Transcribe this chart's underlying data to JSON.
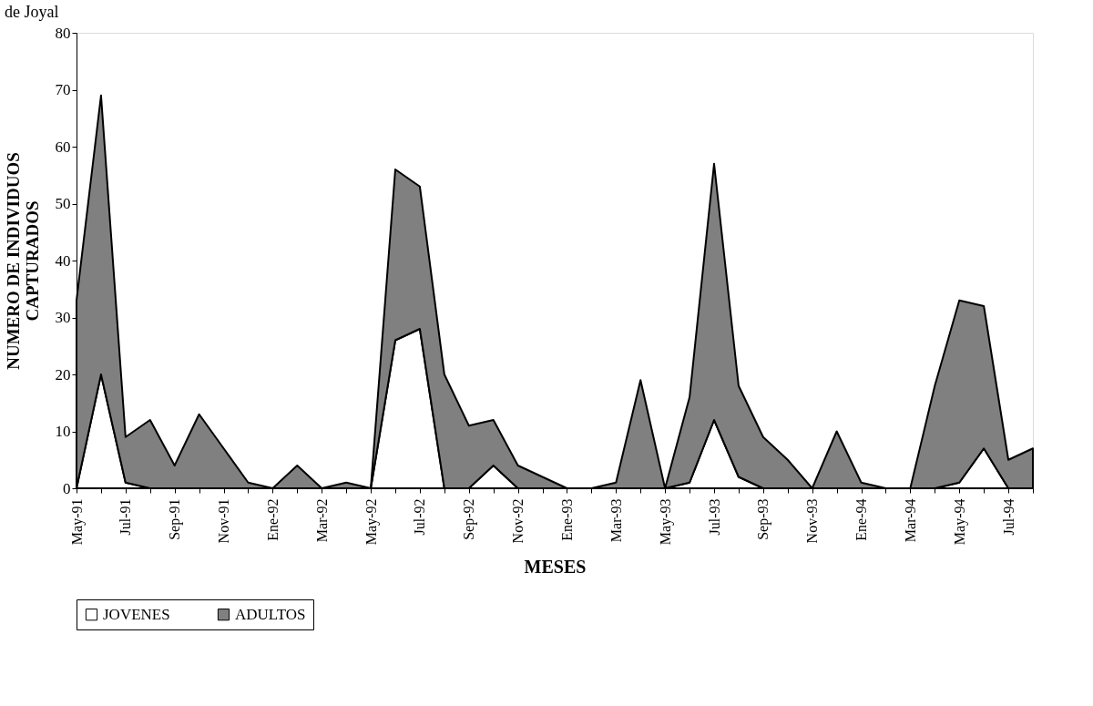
{
  "chart_data": {
    "type": "area",
    "title": "de Joyal",
    "xlabel": "MESES",
    "ylabel": "NUMERO DE INDIVIDUOS\nCAPTURADOS",
    "categories": [
      "May-91",
      null,
      "Jul-91",
      null,
      "Sep-91",
      null,
      "Nov-91",
      null,
      "Ene-92",
      null,
      "Mar-92",
      null,
      "May-92",
      null,
      "Jul-92",
      null,
      "Sep-92",
      null,
      "Nov-92",
      null,
      "Ene-93",
      null,
      "Mar-93",
      null,
      "May-93",
      null,
      "Jul-93",
      null,
      "Sep-93",
      null,
      "Nov-93",
      null,
      "Ene-94",
      null,
      "Mar-94",
      null,
      "May-94",
      null,
      "Jul-94",
      null
    ],
    "stacked": true,
    "series": [
      {
        "name": "JOVENES",
        "color": "#ffffff",
        "values": [
          0,
          20,
          1,
          0,
          0,
          0,
          0,
          0,
          0,
          0,
          0,
          0,
          0,
          26,
          28,
          0,
          0,
          4,
          0,
          0,
          0,
          0,
          0,
          0,
          0,
          1,
          12,
          2,
          0,
          0,
          0,
          0,
          0,
          0,
          0,
          0,
          1,
          7,
          0,
          0
        ]
      },
      {
        "name": "ADULTOS",
        "color": "#808080",
        "values": [
          33,
          49,
          8,
          12,
          4,
          13,
          7,
          1,
          0,
          4,
          0,
          1,
          0,
          30,
          25,
          20,
          11,
          8,
          4,
          2,
          0,
          0,
          1,
          19,
          0,
          15,
          45,
          16,
          9,
          5,
          0,
          10,
          1,
          0,
          0,
          18,
          32,
          25,
          5,
          7
        ]
      }
    ],
    "ylim": [
      0,
      80
    ],
    "yticks": [
      0,
      10,
      20,
      30,
      40,
      50,
      60,
      70,
      80
    ],
    "grid": false,
    "legend": "bottom"
  }
}
